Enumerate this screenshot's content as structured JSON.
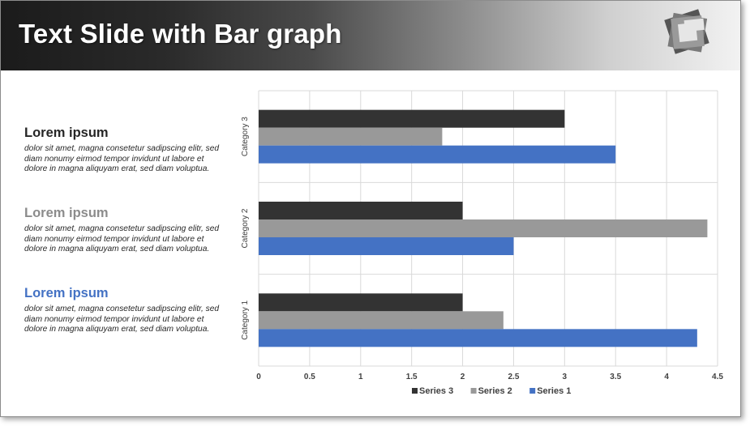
{
  "slide": {
    "title": "Text Slide with Bar graph"
  },
  "text_blocks": [
    {
      "heading": "Lorem ipsum",
      "color": "#262626",
      "body": "dolor sit amet, magna consetetur sadipscing elitr, sed diam nonumy eirmod tempor invidunt ut labore et dolore in magna aliquyam erat, sed diam voluptua."
    },
    {
      "heading": "Lorem ipsum",
      "color": "#8c8c8c",
      "body": "dolor sit amet, magna consetetur sadipscing elitr, sed diam nonumy eirmod tempor invidunt ut labore et dolore in magna aliquyam erat, sed diam voluptua."
    },
    {
      "heading": "Lorem ipsum",
      "color": "#4472c4",
      "body": "dolor sit amet, magna consetetur sadipscing elitr, sed diam nonumy eirmod tempor invidunt ut labore et dolore in magna aliquyam erat, sed diam voluptua."
    }
  ],
  "chart_data": {
    "type": "bar",
    "orientation": "horizontal",
    "categories": [
      "Category 1",
      "Category 2",
      "Category 3"
    ],
    "series": [
      {
        "name": "Series 1",
        "color": "#4472c4",
        "values": [
          4.3,
          2.5,
          3.5
        ]
      },
      {
        "name": "Series 2",
        "color": "#999999",
        "values": [
          2.4,
          4.4,
          1.8
        ]
      },
      {
        "name": "Series 3",
        "color": "#333333",
        "values": [
          2,
          2,
          3
        ]
      }
    ],
    "x_ticks": [
      "0",
      "0.5",
      "1",
      "1.5",
      "2",
      "2.5",
      "3",
      "3.5",
      "4",
      "4.5"
    ],
    "xlim": [
      0,
      4.5
    ],
    "legend": [
      "Series 3",
      "Series 2",
      "Series 1"
    ],
    "legend_position": "bottom",
    "grid": true
  }
}
